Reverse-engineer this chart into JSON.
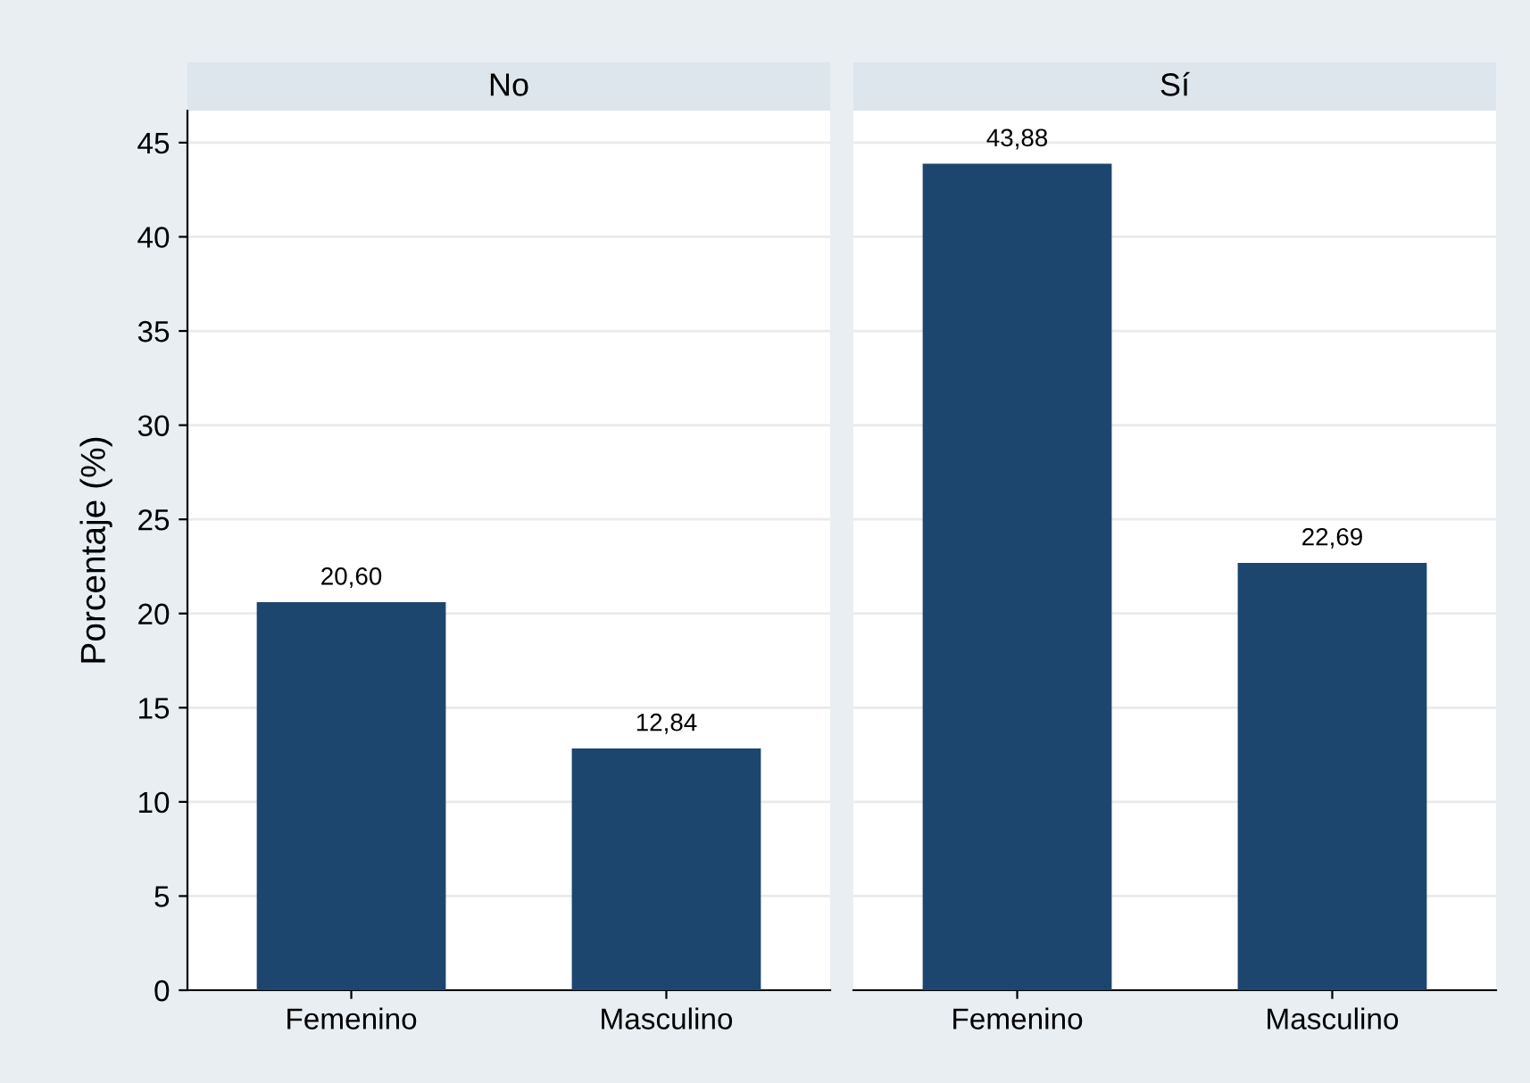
{
  "chart_data": [
    {
      "type": "bar",
      "title": "No",
      "ylabel": "Porcentaje (%)",
      "categories": [
        "Femenino",
        "Masculino"
      ],
      "values": [
        20.6,
        12.84
      ],
      "value_labels": [
        "20,60",
        "12,84"
      ],
      "color": "#1c466e",
      "ylim": [
        0,
        46.7
      ],
      "yticks": [
        0,
        5,
        10,
        15,
        20,
        25,
        30,
        35,
        40,
        45
      ],
      "grid": "y"
    },
    {
      "type": "bar",
      "title": "Sí",
      "categories": [
        "Femenino",
        "Masculino"
      ],
      "values": [
        43.88,
        22.69
      ],
      "value_labels": [
        "43,88",
        "22,69"
      ],
      "color": "#1c466e",
      "ylim": [
        0,
        46.7
      ],
      "yticks": [
        0,
        5,
        10,
        15,
        20,
        25,
        30,
        35,
        40,
        45
      ],
      "grid": "y",
      "tick_labels": "x"
    }
  ]
}
